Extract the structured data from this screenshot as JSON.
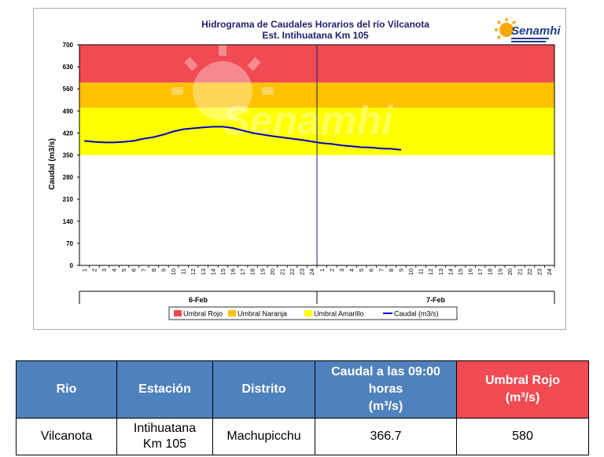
{
  "chart_data": {
    "type": "line",
    "title": "Hidrograma de Caudales Horarios del río Vilcanota",
    "subtitle": "Est. Intihuatana Km 105",
    "ylabel": "Caudal  (m3/s)",
    "ylim": [
      0,
      700
    ],
    "yticks": [
      0,
      70,
      140,
      210,
      280,
      350,
      420,
      490,
      560,
      630,
      700
    ],
    "x_hour_labels": [
      "1",
      "2",
      "3",
      "4",
      "5",
      "6",
      "7",
      "8",
      "9",
      "10",
      "11",
      "12",
      "13",
      "14",
      "15",
      "16",
      "17",
      "18",
      "19",
      "20",
      "21",
      "22",
      "23",
      "24"
    ],
    "days": [
      "6-Feb",
      "7-Feb"
    ],
    "bands": [
      {
        "name": "Umbral Rojo",
        "from": 580,
        "to": 700,
        "color": "#f04b53"
      },
      {
        "name": "Umbral Naranja",
        "from": 500,
        "to": 580,
        "color": "#ffc000"
      },
      {
        "name": "Umbral Amarillo",
        "from": 350,
        "to": 500,
        "color": "#ffff00"
      }
    ],
    "series": [
      {
        "name": "Caudal (m3/s)",
        "color": "#0000cc",
        "hours": [
          1,
          2,
          3,
          4,
          5,
          6,
          7,
          8,
          9,
          10,
          11,
          12,
          13,
          14,
          15,
          16,
          17,
          18,
          19,
          20,
          21,
          22,
          23,
          24,
          25,
          26,
          27,
          28,
          29,
          30,
          31,
          32,
          33
        ],
        "values": [
          395,
          392,
          390,
          390,
          392,
          395,
          402,
          407,
          415,
          425,
          432,
          435,
          438,
          440,
          440,
          436,
          428,
          420,
          415,
          410,
          406,
          402,
          398,
          393,
          388,
          385,
          381,
          378,
          375,
          374,
          371,
          370,
          366.7
        ]
      }
    ],
    "legend": [
      "Umbral Rojo",
      "Umbral Naranja",
      "Umbral Amarillo",
      "Caudal (m3/s)"
    ],
    "legend_position": "bottom",
    "grid": false
  },
  "logo": {
    "text": "Senamhi",
    "watermark": "Senamhi"
  },
  "table": {
    "headers": [
      "Rio",
      "Estación",
      "Distrito",
      "Caudal a las 09:00 horas",
      "(m³/s)",
      "Umbral Rojo",
      "(m³/s)"
    ],
    "row": [
      "Vilcanota",
      "Intihuatana",
      "Km 105",
      "Machupicchu",
      "366.7",
      "580"
    ]
  }
}
